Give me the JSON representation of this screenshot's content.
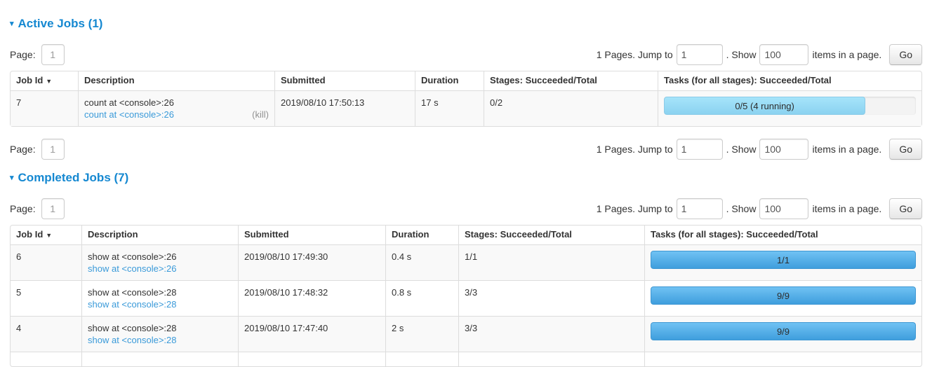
{
  "colors": {
    "title_blue": "#1588d1",
    "link_blue": "#3a9ad9",
    "kill_gray": "#919191",
    "bar_succeeded_top": "#70c2f3",
    "bar_succeeded_bottom": "#3f9edd",
    "bar_running_top": "#a6e4fa",
    "bar_running_bottom": "#8bd2f0",
    "row_stripe": "#f9f9f9",
    "table_border": "#dddddd"
  },
  "icons": {
    "collapse_arrow": "▾",
    "sort_desc": "▼"
  },
  "pagination": {
    "page_label": "Page:",
    "page_value": "1",
    "pages_info": "1 Pages. Jump to",
    "jump_value": "1",
    "show_label": ". Show",
    "show_value": "100",
    "items_label": "items in a page.",
    "go_label": "Go"
  },
  "columns": {
    "job_id": "Job Id",
    "description": "Description",
    "submitted": "Submitted",
    "duration": "Duration",
    "stages": "Stages: Succeeded/Total",
    "tasks": "Tasks (for all stages): Succeeded/Total"
  },
  "active_jobs": {
    "title": "Active Jobs (1)",
    "rows": [
      {
        "job_id": "7",
        "description": "count at <console>:26",
        "description_link": "count at <console>:26",
        "kill_label": "(kill)",
        "submitted": "2019/08/10 17:50:13",
        "duration": "17 s",
        "stages": "0/2",
        "tasks_bar": {
          "label": "0/5 (4 running)",
          "percent": 80,
          "state": "running"
        }
      }
    ]
  },
  "completed_jobs": {
    "title": "Completed Jobs (7)",
    "rows": [
      {
        "job_id": "6",
        "description": "show at <console>:26",
        "description_link": "show at <console>:26",
        "submitted": "2019/08/10 17:49:30",
        "duration": "0.4 s",
        "stages": "1/1",
        "tasks_bar": {
          "label": "1/1",
          "percent": 100,
          "state": "succeeded"
        }
      },
      {
        "job_id": "5",
        "description": "show at <console>:28",
        "description_link": "show at <console>:28",
        "submitted": "2019/08/10 17:48:32",
        "duration": "0.8 s",
        "stages": "3/3",
        "tasks_bar": {
          "label": "9/9",
          "percent": 100,
          "state": "succeeded"
        }
      },
      {
        "job_id": "4",
        "description": "show at <console>:28",
        "description_link": "show at <console>:28",
        "submitted": "2019/08/10 17:47:40",
        "duration": "2 s",
        "stages": "3/3",
        "tasks_bar": {
          "label": "9/9",
          "percent": 100,
          "state": "succeeded"
        }
      }
    ]
  }
}
